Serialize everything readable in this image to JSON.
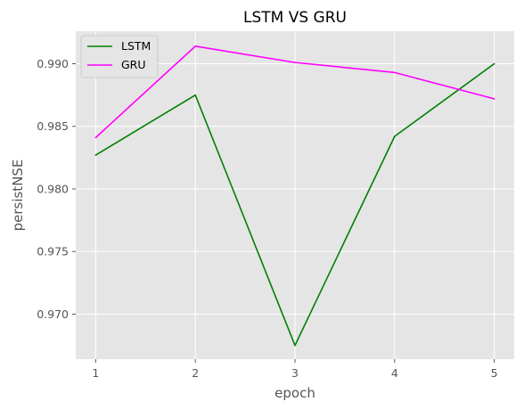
{
  "chart_data": {
    "type": "line",
    "title": "LSTM VS GRU",
    "xlabel": "epoch",
    "ylabel": "persistNSE",
    "x": [
      1,
      2,
      3,
      4,
      5
    ],
    "xticks": [
      "1",
      "2",
      "3",
      "4",
      "5"
    ],
    "xlim": [
      0.8,
      5.2
    ],
    "ylim": [
      0.9664,
      0.9926
    ],
    "yticks": [
      "0.970",
      "0.975",
      "0.980",
      "0.985",
      "0.990"
    ],
    "ytick_values": [
      0.97,
      0.975,
      0.98,
      0.985,
      0.99
    ],
    "grid": true,
    "legend_position": "top-left",
    "series": [
      {
        "name": "LSTM",
        "color": "#008000",
        "values": [
          0.9827,
          0.9875,
          0.9675,
          0.9842,
          0.99
        ]
      },
      {
        "name": "GRU",
        "color": "#ff00ff",
        "values": [
          0.9841,
          0.9914,
          0.9901,
          0.9893,
          0.9872
        ]
      }
    ]
  }
}
